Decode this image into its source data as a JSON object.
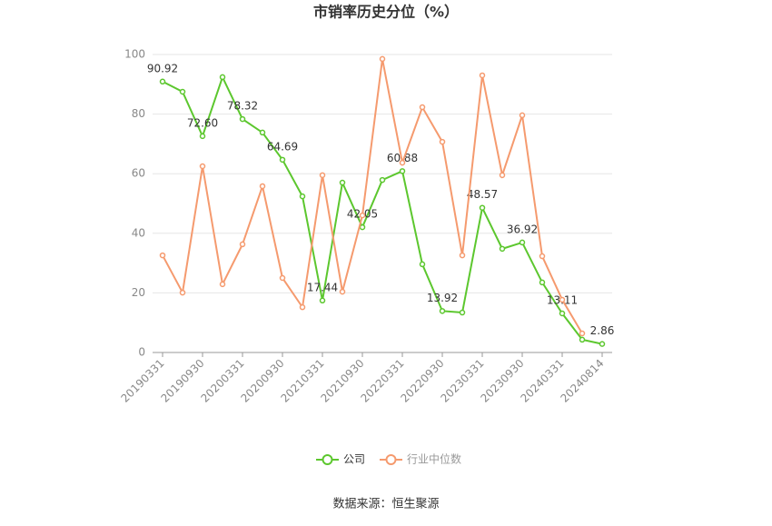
{
  "chart_data": {
    "type": "line",
    "title": "市销率历史分位（%）",
    "source": "数据来源：恒生聚源",
    "categories": [
      "20190331",
      null,
      "20190930",
      null,
      "20200331",
      null,
      "20200930",
      null,
      "20210331",
      null,
      "20210930",
      null,
      "20220331",
      null,
      "20220930",
      null,
      "20230331",
      null,
      "20230930",
      null,
      "20240331",
      null,
      "20240814"
    ],
    "series": [
      {
        "name": "公司",
        "color": "#5cc72e",
        "values": [
          90.92,
          87.5,
          72.6,
          92.4,
          78.32,
          73.8,
          64.69,
          52.4,
          17.44,
          57.0,
          42.05,
          57.9,
          60.88,
          29.6,
          13.92,
          13.4,
          48.57,
          34.8,
          36.92,
          23.5,
          13.11,
          4.3,
          2.86
        ],
        "value_labels": [
          "90.92",
          null,
          "72.60",
          null,
          "78.32",
          null,
          "64.69",
          null,
          "17.44",
          null,
          "42.05",
          null,
          "60.88",
          null,
          "13.92",
          null,
          "48.57",
          null,
          "36.92",
          null,
          "13.11",
          null,
          "2.86"
        ]
      },
      {
        "name": "行业中位数",
        "color": "#f59a6e",
        "values": [
          32.6,
          20.1,
          62.5,
          22.9,
          36.3,
          55.8,
          25.0,
          15.2,
          59.5,
          20.4,
          46.0,
          98.5,
          63.7,
          82.3,
          70.7,
          32.6,
          93.0,
          59.5,
          79.6,
          32.3,
          17.7,
          6.4,
          null
        ]
      }
    ],
    "ylim": [
      0,
      100
    ],
    "yticks": [
      0,
      20,
      40,
      60,
      80,
      100
    ],
    "grid": true
  }
}
